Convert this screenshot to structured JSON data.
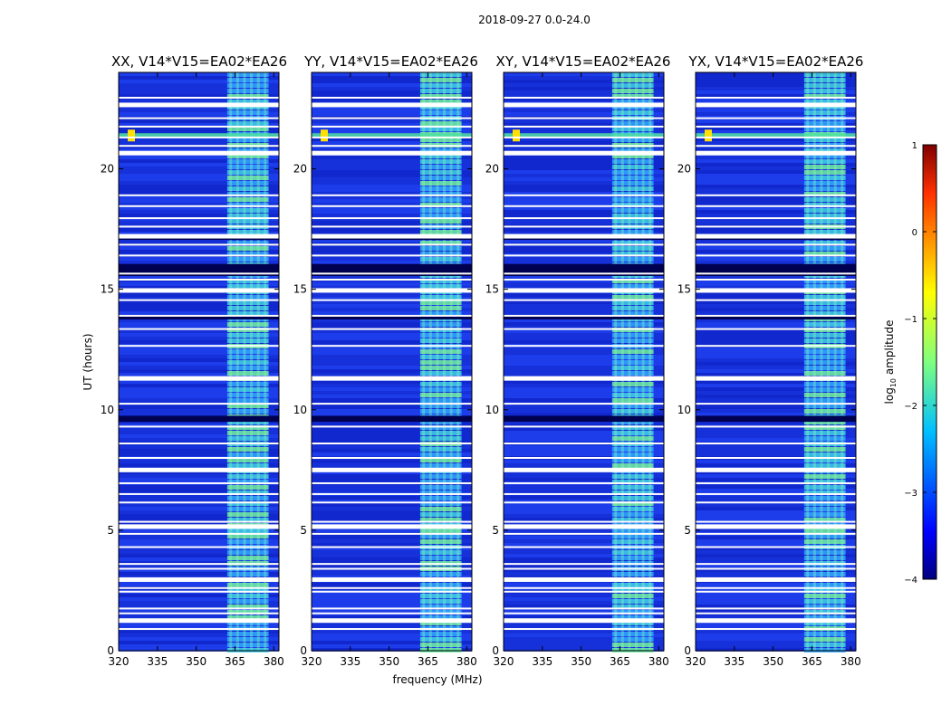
{
  "chart_data": {
    "type": "heatmap",
    "title": "2018-09-27 0.0-24.0",
    "xlabel": "frequency (MHz)",
    "ylabel": "UT (hours)",
    "xlim": [
      320,
      382
    ],
    "ylim": [
      0,
      24
    ],
    "xticks": [
      "320",
      "335",
      "350",
      "365",
      "380"
    ],
    "xtick_values": [
      320,
      335,
      350,
      365,
      380
    ],
    "yticks": [
      "0",
      "5",
      "10",
      "15",
      "20"
    ],
    "ytick_values": [
      0,
      5,
      10,
      15,
      20
    ],
    "panels": [
      {
        "title": "XX, V14*V15=EA02*EA26",
        "stations": "EA02*EA26",
        "polarization": "XX"
      },
      {
        "title": "YY, V14*V15=EA02*EA26",
        "stations": "EA02*EA26",
        "polarization": "YY"
      },
      {
        "title": "XY, V14*V15=EA02*EA26",
        "stations": "EA02*EA26",
        "polarization": "XY"
      },
      {
        "title": "YX, V14*V15=EA02*EA26",
        "stations": "EA02*EA26",
        "polarization": "YX"
      }
    ],
    "colorbar": {
      "label": "log",
      "label_sub": "10",
      "label_rest": " amplitude",
      "range": [
        -4,
        1
      ],
      "ticks": [
        "−4",
        "−3",
        "−2",
        "−1",
        "0",
        "1"
      ],
      "tick_values": [
        -4,
        -3,
        -2,
        -1,
        0,
        1
      ],
      "colormap": "jet"
    },
    "flagged_hours": [
      0.9,
      1.25,
      1.55,
      1.75,
      2.45,
      2.6,
      2.95,
      3.4,
      3.6,
      4.3,
      4.85,
      5.15,
      5.35,
      6.15,
      6.5,
      6.95,
      7.5,
      8.0,
      8.6,
      9.3,
      10.25,
      11.3,
      12.65,
      13.35,
      13.9,
      14.55,
      14.95,
      15.4,
      15.65,
      16.4,
      16.85,
      17.2,
      17.6,
      17.95,
      18.45,
      18.9,
      20.65,
      20.95,
      21.3,
      21.75,
      22.1,
      22.65,
      22.95
    ],
    "dark_bands_hours": [
      [
        15.55,
        16.05
      ],
      [
        9.5,
        9.75
      ],
      [
        13.75,
        13.9
      ],
      [
        17.05,
        17.2
      ]
    ],
    "rfi_band_mhz": [
      362,
      378
    ],
    "bright_tone_hour": 21.4
  }
}
